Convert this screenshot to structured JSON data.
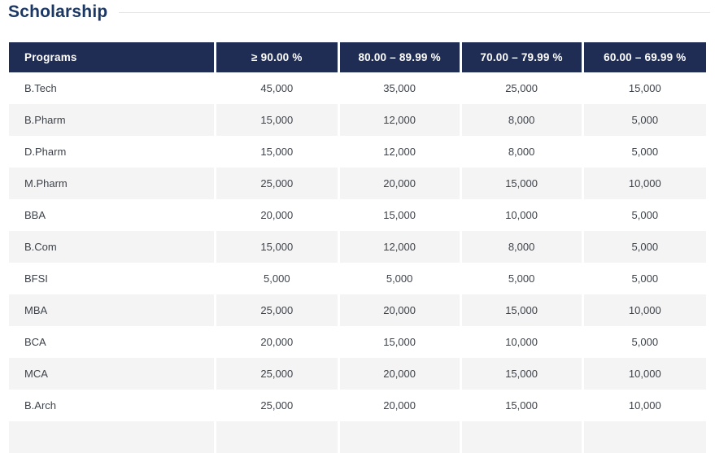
{
  "page": {
    "title": "Scholarship"
  },
  "table": {
    "columns": [
      "Programs",
      "≥ 90.00 %",
      "80.00 – 89.99 %",
      "70.00 – 79.99 %",
      "60.00 – 69.99 %"
    ],
    "rows": [
      {
        "program": "B.Tech",
        "values": [
          "45,000",
          "35,000",
          "25,000",
          "15,000"
        ]
      },
      {
        "program": "B.Pharm",
        "values": [
          "15,000",
          "12,000",
          "8,000",
          "5,000"
        ]
      },
      {
        "program": "D.Pharm",
        "values": [
          "15,000",
          "12,000",
          "8,000",
          "5,000"
        ]
      },
      {
        "program": "M.Pharm",
        "values": [
          "25,000",
          "20,000",
          "15,000",
          "10,000"
        ]
      },
      {
        "program": "BBA",
        "values": [
          "20,000",
          "15,000",
          "10,000",
          "5,000"
        ]
      },
      {
        "program": "B.Com",
        "values": [
          "15,000",
          "12,000",
          "8,000",
          "5,000"
        ]
      },
      {
        "program": "BFSI",
        "values": [
          "5,000",
          "5,000",
          "5,000",
          "5,000"
        ]
      },
      {
        "program": "MBA",
        "values": [
          "25,000",
          "20,000",
          "15,000",
          "10,000"
        ]
      },
      {
        "program": "BCA",
        "values": [
          "20,000",
          "15,000",
          "10,000",
          "5,000"
        ]
      },
      {
        "program": "MCA",
        "values": [
          "25,000",
          "20,000",
          "15,000",
          "10,000"
        ]
      },
      {
        "program": "B.Arch",
        "values": [
          "25,000",
          "20,000",
          "15,000",
          "10,000"
        ]
      }
    ]
  },
  "colors": {
    "header_bg": "#1f2d55",
    "header_text": "#ffffff",
    "row_stripe": "#f4f4f4",
    "title_text": "#1b3763",
    "body_text": "#3e434b",
    "divider": "#e4e4e4"
  }
}
